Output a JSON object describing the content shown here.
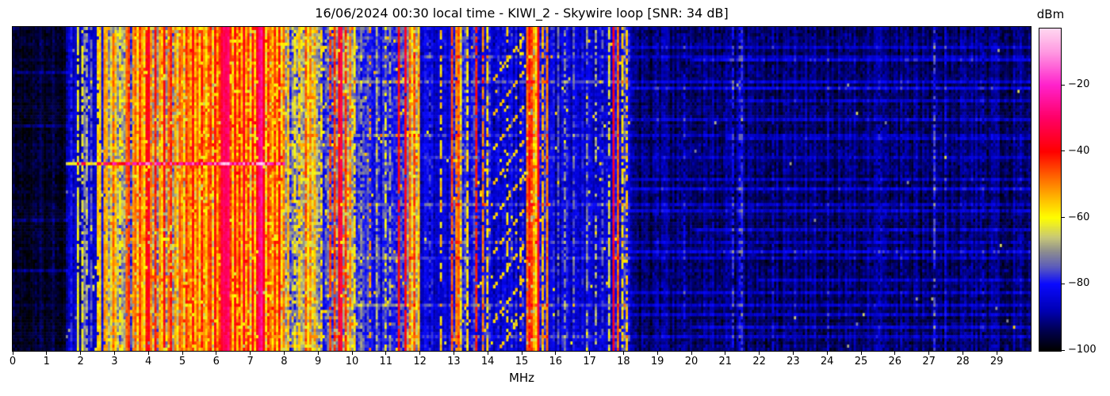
{
  "title": "16/06/2024 00:30 local time - KIWI_2 - Skywire loop [SNR: 34 dB]",
  "xlabel": "MHz",
  "colorbar": {
    "label": "dBm",
    "vmin": -100,
    "vmax": -3,
    "ticks": [
      {
        "v": -20,
        "label": "−20"
      },
      {
        "v": -40,
        "label": "−40"
      },
      {
        "v": -60,
        "label": "−60"
      },
      {
        "v": -80,
        "label": "−80"
      },
      {
        "v": -100,
        "label": "−100"
      }
    ]
  },
  "x_ticks": [
    "0",
    "1",
    "2",
    "3",
    "4",
    "5",
    "6",
    "7",
    "8",
    "9",
    "10",
    "11",
    "12",
    "13",
    "14",
    "15",
    "16",
    "17",
    "18",
    "19",
    "20",
    "21",
    "22",
    "23",
    "24",
    "25",
    "26",
    "27",
    "28",
    "29"
  ],
  "chart_data": {
    "type": "heatmap",
    "subtype": "spectrogram",
    "title": "16/06/2024 00:30 local time - KIWI_2 - Skywire loop [SNR: 34 dB]",
    "xlabel": "MHz",
    "x_range": [
      0,
      30
    ],
    "x_tick_step": 1,
    "y_axis": "time (unlabeled)",
    "value_label": "dBm",
    "value_range": [
      -100,
      -3
    ],
    "colorbar_ticks": [
      -20,
      -40,
      -60,
      -80,
      -100
    ],
    "grid": {
      "cols": 460,
      "rows": 103
    },
    "seed": 1234567,
    "colormap_stops": [
      [
        -100,
        0,
        0,
        0
      ],
      [
        -94,
        0,
        0,
        80
      ],
      [
        -88,
        0,
        0,
        180
      ],
      [
        -80,
        10,
        10,
        255
      ],
      [
        -75,
        90,
        90,
        190
      ],
      [
        -70,
        144,
        144,
        142
      ],
      [
        -66,
        200,
        200,
        120
      ],
      [
        -60,
        255,
        255,
        0
      ],
      [
        -55,
        255,
        196,
        0
      ],
      [
        -48,
        255,
        106,
        0
      ],
      [
        -40,
        255,
        0,
        0
      ],
      [
        -30,
        255,
        0,
        102
      ],
      [
        -20,
        255,
        34,
        204
      ],
      [
        -10,
        255,
        154,
        226
      ],
      [
        -3,
        255,
        216,
        240
      ]
    ],
    "bands": [
      [
        0,
        1.55,
        -96,
        4,
        0,
        0
      ],
      [
        1.55,
        2.05,
        -88,
        5,
        0.01,
        -70
      ],
      [
        2.05,
        2.65,
        -84,
        6,
        0.02,
        -62
      ],
      [
        2.65,
        3.2,
        -70,
        9,
        0.05,
        -52
      ],
      [
        3.2,
        3.5,
        -70,
        9,
        0.05,
        -52
      ],
      [
        3.5,
        5.05,
        -63,
        9,
        0.06,
        -48
      ],
      [
        5.05,
        8.05,
        -58,
        9,
        0.07,
        -44
      ],
      [
        8.05,
        8.55,
        -72,
        10,
        0.07,
        -56
      ],
      [
        8.55,
        9.0,
        -64,
        9,
        0.06,
        -50
      ],
      [
        9.0,
        9.45,
        -76,
        9,
        0.06,
        -58
      ],
      [
        9.45,
        10.05,
        -64,
        9,
        0.06,
        -48
      ],
      [
        10.05,
        11.3,
        -80,
        7,
        0.015,
        -56
      ],
      [
        11.3,
        11.7,
        -76,
        8,
        0.03,
        -55
      ],
      [
        11.7,
        12.0,
        -62,
        8,
        0.05,
        -48
      ],
      [
        12.0,
        12.9,
        -85,
        5,
        0.004,
        -62
      ],
      [
        12.9,
        13.25,
        -75,
        8,
        0.04,
        -55
      ],
      [
        13.25,
        14.1,
        -80,
        8,
        0.03,
        -56
      ],
      [
        14.1,
        15.1,
        -84,
        6,
        0.02,
        -58
      ],
      [
        15.1,
        15.45,
        -62,
        8,
        0.05,
        -46
      ],
      [
        15.45,
        15.8,
        -79,
        7,
        0.02,
        -56
      ],
      [
        15.8,
        17.5,
        -85,
        6,
        0.01,
        -60
      ],
      [
        17.5,
        18.2,
        -80,
        7,
        0.02,
        -56
      ],
      [
        18.2,
        30,
        -92,
        5,
        0.0015,
        -68
      ]
    ],
    "carriers": [
      [
        1.75,
        -80,
        1,
        0.9
      ],
      [
        1.92,
        -62,
        1,
        0.85
      ],
      [
        2.05,
        -62,
        1,
        0.7
      ],
      [
        2.12,
        -72,
        1,
        0.9
      ],
      [
        2.2,
        -68,
        1,
        0.8
      ],
      [
        2.32,
        -74,
        1,
        0.8
      ],
      [
        2.5,
        -56,
        1,
        0.9
      ],
      [
        2.6,
        -56,
        1,
        0.95
      ],
      [
        2.7,
        -52,
        1,
        0.95
      ],
      [
        2.8,
        -54,
        1,
        0.9
      ],
      [
        2.95,
        -48,
        1,
        0.9
      ],
      [
        3.05,
        -55,
        1,
        0.8
      ],
      [
        3.15,
        -60,
        1,
        0.7
      ],
      [
        3.35,
        -48,
        1,
        0.95
      ],
      [
        3.45,
        -44,
        1,
        0.95
      ],
      [
        3.55,
        -52,
        1,
        0.9
      ],
      [
        3.65,
        -48,
        1,
        0.9
      ],
      [
        3.73,
        -44,
        1,
        0.95
      ],
      [
        3.82,
        -52,
        1,
        0.9
      ],
      [
        3.95,
        -40,
        2,
        0.95
      ],
      [
        4.05,
        -50,
        1,
        0.9
      ],
      [
        4.2,
        -42,
        1,
        0.95
      ],
      [
        4.32,
        -52,
        1,
        0.9
      ],
      [
        4.46,
        -40,
        1,
        0.95
      ],
      [
        4.57,
        -48,
        1,
        0.9
      ],
      [
        4.65,
        -42,
        1,
        0.9
      ],
      [
        4.78,
        -52,
        1,
        0.85
      ],
      [
        4.9,
        -47,
        1,
        0.9
      ],
      [
        5.0,
        -50,
        1,
        0.85
      ],
      [
        5.1,
        -44,
        1,
        0.95
      ],
      [
        5.2,
        -50,
        1,
        0.9
      ],
      [
        5.3,
        -40,
        1,
        0.95
      ],
      [
        5.42,
        -48,
        1,
        0.9
      ],
      [
        5.55,
        -42,
        1,
        0.9
      ],
      [
        5.65,
        -50,
        1,
        0.85
      ],
      [
        5.75,
        -46,
        1,
        0.9
      ],
      [
        5.85,
        -44,
        1,
        0.9
      ],
      [
        5.95,
        -40,
        1,
        0.95
      ],
      [
        6.07,
        -44,
        1,
        0.9
      ],
      [
        6.17,
        -34,
        2,
        1
      ],
      [
        6.3,
        -32,
        2,
        1
      ],
      [
        6.42,
        -44,
        1,
        0.9
      ],
      [
        6.55,
        -40,
        1,
        0.95
      ],
      [
        6.68,
        -42,
        1,
        0.9
      ],
      [
        6.8,
        -37,
        1,
        0.95
      ],
      [
        6.93,
        -44,
        1,
        0.9
      ],
      [
        7.05,
        -40,
        1,
        0.9
      ],
      [
        7.18,
        -36,
        1,
        0.95
      ],
      [
        7.28,
        -28,
        2,
        1
      ],
      [
        7.38,
        -38,
        1,
        0.95
      ],
      [
        7.5,
        -44,
        1,
        0.9
      ],
      [
        7.6,
        -48,
        1,
        0.85
      ],
      [
        7.72,
        -44,
        1,
        0.9
      ],
      [
        7.85,
        -40,
        1,
        0.9
      ],
      [
        7.97,
        -48,
        1,
        0.85
      ],
      [
        8.12,
        -54,
        1,
        0.8
      ],
      [
        8.3,
        -60,
        1,
        0.7
      ],
      [
        8.47,
        -55,
        1,
        0.8
      ],
      [
        8.65,
        -46,
        1,
        0.9
      ],
      [
        8.8,
        -50,
        1,
        0.85
      ],
      [
        8.92,
        -54,
        1,
        0.8
      ],
      [
        9.1,
        -58,
        1,
        0.7
      ],
      [
        9.35,
        -45,
        1,
        0.8
      ],
      [
        9.5,
        -44,
        1,
        0.9
      ],
      [
        9.65,
        -37,
        2,
        0.95
      ],
      [
        9.8,
        -44,
        1,
        0.9
      ],
      [
        9.92,
        -50,
        1,
        0.85
      ],
      [
        10.1,
        -58,
        1,
        0.7
      ],
      [
        10.3,
        -70,
        1,
        0.7
      ],
      [
        10.55,
        -52,
        1,
        0.35
      ],
      [
        10.75,
        -68,
        1,
        0.6
      ],
      [
        11.0,
        -62,
        1,
        0.4
      ],
      [
        11.15,
        -68,
        1,
        0.6
      ],
      [
        11.38,
        -40,
        1,
        0.95
      ],
      [
        11.6,
        -38,
        1,
        0.95
      ],
      [
        11.73,
        -48,
        1,
        0.9
      ],
      [
        11.85,
        -46,
        1,
        0.9
      ],
      [
        11.95,
        -54,
        1,
        0.8
      ],
      [
        12.3,
        -78,
        1,
        0.5
      ],
      [
        12.63,
        -56,
        1,
        0.55
      ],
      [
        12.95,
        -46,
        1,
        0.95
      ],
      [
        13.08,
        -50,
        2,
        0.9
      ],
      [
        13.2,
        -58,
        1,
        0.7
      ],
      [
        13.42,
        -58,
        1,
        0.7
      ],
      [
        13.64,
        -42,
        1,
        0.9
      ],
      [
        13.85,
        -50,
        1,
        0.85
      ],
      [
        14.0,
        -58,
        1,
        0.7
      ],
      [
        14.55,
        -58,
        1,
        0.3
      ],
      [
        14.95,
        -56,
        1,
        0.35
      ],
      [
        15.15,
        -48,
        1,
        0.9
      ],
      [
        15.22,
        -42,
        1,
        0.95
      ],
      [
        15.3,
        -45,
        1,
        0.9
      ],
      [
        15.38,
        -52,
        1,
        0.85
      ],
      [
        15.49,
        -38,
        1,
        0.95
      ],
      [
        15.6,
        -54,
        1,
        0.8
      ],
      [
        15.73,
        -50,
        1,
        0.95
      ],
      [
        16.1,
        -74,
        1,
        0.6
      ],
      [
        16.3,
        -71,
        1,
        0.6
      ],
      [
        16.55,
        -74,
        1,
        0.5
      ],
      [
        16.9,
        -71,
        1,
        0.6
      ],
      [
        17.2,
        -68,
        1,
        0.5
      ],
      [
        17.35,
        -74,
        1,
        0.5
      ],
      [
        17.58,
        -64,
        1,
        0.7
      ],
      [
        17.7,
        -37,
        1,
        1
      ],
      [
        17.85,
        -48,
        1,
        1
      ],
      [
        17.95,
        -58,
        1,
        0.6
      ],
      [
        18.07,
        -56,
        1,
        0.5
      ],
      [
        19.0,
        -86,
        1,
        0.6
      ],
      [
        19.8,
        -84,
        1,
        0.6
      ],
      [
        21.2,
        -80,
        1,
        0.7
      ],
      [
        21.4,
        -82,
        2,
        0.85
      ],
      [
        22.4,
        -86,
        1,
        0.5
      ],
      [
        24.0,
        -86,
        1,
        0.5
      ],
      [
        25.5,
        -86,
        1,
        0.5
      ],
      [
        26.2,
        -86,
        1,
        0.5
      ],
      [
        27.15,
        -78,
        1,
        0.75
      ],
      [
        27.5,
        -83,
        1,
        0.5
      ],
      [
        28.6,
        -87,
        1,
        0.5
      ]
    ],
    "row_streaks": [
      [
        0.055,
        18.2,
        30,
        7
      ],
      [
        0.09,
        10,
        30,
        6
      ],
      [
        0.1,
        20,
        30,
        8
      ],
      [
        0.135,
        0,
        1.6,
        6
      ],
      [
        0.165,
        10,
        30,
        7
      ],
      [
        0.19,
        18.2,
        30,
        9
      ],
      [
        0.225,
        21,
        30,
        6
      ],
      [
        0.28,
        18.2,
        30,
        8
      ],
      [
        0.3,
        0,
        1.6,
        5
      ],
      [
        0.33,
        10,
        30,
        6
      ],
      [
        0.345,
        21,
        30,
        7
      ],
      [
        0.4,
        12,
        30,
        5
      ],
      [
        0.47,
        18.2,
        30,
        6
      ],
      [
        0.5,
        18.2,
        30,
        9
      ],
      [
        0.545,
        10,
        30,
        6
      ],
      [
        0.57,
        18.2,
        30,
        7
      ],
      [
        0.6,
        0,
        1.6,
        6
      ],
      [
        0.63,
        20,
        30,
        8
      ],
      [
        0.665,
        12,
        30,
        5
      ],
      [
        0.7,
        18.2,
        30,
        9
      ],
      [
        0.72,
        10,
        30,
        6
      ],
      [
        0.75,
        0,
        1.6,
        5
      ],
      [
        0.78,
        22,
        30,
        7
      ],
      [
        0.82,
        18.2,
        30,
        8
      ],
      [
        0.86,
        10,
        30,
        6
      ],
      [
        0.895,
        18.2,
        30,
        7
      ],
      [
        0.93,
        20,
        30,
        7
      ],
      [
        0.965,
        12,
        30,
        5
      ]
    ],
    "event_line": {
      "row_frac": 0.422,
      "f0": 1.55,
      "f1": 8.05,
      "boost": 26,
      "floor": -67
    },
    "chirps": {
      "f0": 14.12,
      "f1": 15.02,
      "lines": 9,
      "row_gap": 11,
      "row_span": 14,
      "level": -56
    }
  }
}
